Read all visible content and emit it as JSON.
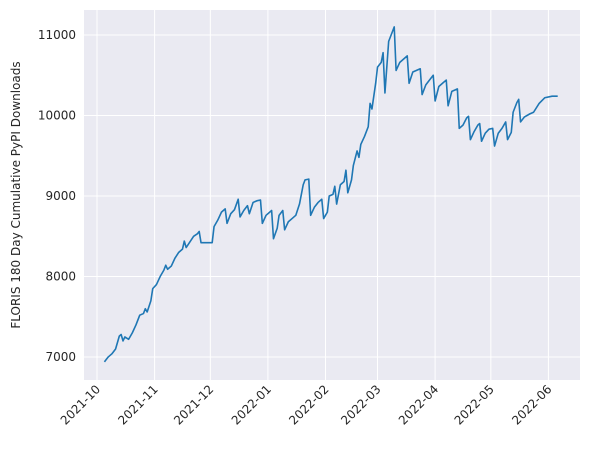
{
  "chart_data": {
    "type": "line",
    "ylabel": "FLORIS 180 Day Cumulative PyPI Downloads",
    "x": [
      18905,
      18907,
      18909,
      18911,
      18913,
      18914,
      18915,
      18916,
      18918,
      18920,
      18922,
      18924,
      18926,
      18927,
      18928,
      18930,
      18931,
      18933,
      18935,
      18937,
      18938,
      18939,
      18941,
      18943,
      18945,
      18947,
      18948,
      18949,
      18951,
      18953,
      18955,
      18956,
      18957,
      18961,
      18963,
      18964,
      18966,
      18968,
      18970,
      18971,
      18973,
      18975,
      18977,
      18978,
      18980,
      18982,
      18983,
      18985,
      18987,
      18989,
      18990,
      18992,
      18994,
      18995,
      18996,
      18998,
      18999,
      19001,
      19002,
      19004,
      19006,
      19008,
      19010,
      19012,
      19013,
      19015,
      19016,
      19018,
      19020,
      19022,
      19023,
      19025,
      19026,
      19028,
      19029,
      19030,
      19032,
      19034,
      19035,
      19036,
      19038,
      19039,
      19041,
      19042,
      19043,
      19045,
      19047,
      19048,
      19049,
      19051,
      19052,
      19054,
      19055,
      19056,
      19057,
      19058,
      19060,
      19061,
      19062,
      19064,
      19066,
      19068,
      19069,
      19071,
      19073,
      19075,
      19076,
      19078,
      19080,
      19082,
      19083,
      19085,
      19087,
      19089,
      19090,
      19092,
      19094,
      19095,
      19096,
      19098,
      19100,
      19101,
      19102,
      19104,
      19106,
      19107,
      19108,
      19110,
      19112,
      19114,
      19115,
      19117,
      19119,
      19121,
      19122,
      19124,
      19125,
      19127,
      19128,
      19129,
      19131,
      19134,
      19136,
      19139,
      19142,
      19146,
      19149
    ],
    "series": [
      {
        "name": "downloads",
        "color": "#1f77b4",
        "values": [
          6940,
          7000,
          7040,
          7100,
          7260,
          7280,
          7200,
          7250,
          7220,
          7300,
          7400,
          7520,
          7540,
          7600,
          7560,
          7700,
          7850,
          7900,
          8000,
          8080,
          8140,
          8090,
          8130,
          8230,
          8300,
          8340,
          8440,
          8360,
          8430,
          8500,
          8530,
          8560,
          8420,
          8420,
          8420,
          8620,
          8700,
          8800,
          8840,
          8660,
          8780,
          8830,
          8960,
          8740,
          8820,
          8880,
          8780,
          8920,
          8940,
          8950,
          8660,
          8760,
          8800,
          8820,
          8470,
          8600,
          8760,
          8820,
          8580,
          8680,
          8720,
          8760,
          8900,
          9140,
          9200,
          9210,
          8760,
          8860,
          8920,
          8960,
          8720,
          8800,
          9000,
          9020,
          9120,
          8900,
          9140,
          9180,
          9320,
          9040,
          9200,
          9380,
          9560,
          9480,
          9640,
          9740,
          9860,
          10150,
          10080,
          10400,
          10600,
          10660,
          10780,
          10280,
          10600,
          10920,
          11040,
          11100,
          10560,
          10660,
          10700,
          10740,
          10400,
          10540,
          10560,
          10580,
          10260,
          10380,
          10440,
          10500,
          10180,
          10360,
          10400,
          10440,
          10120,
          10300,
          10320,
          10330,
          9840,
          9880,
          9970,
          9990,
          9700,
          9800,
          9880,
          9900,
          9680,
          9780,
          9830,
          9840,
          9620,
          9780,
          9840,
          9920,
          9700,
          9790,
          10040,
          10160,
          10200,
          9920,
          9980,
          10020,
          10040,
          10150,
          10220,
          10240,
          10240
        ]
      }
    ],
    "xlim": [
      18894,
      19161
    ],
    "xticks": [
      {
        "value": 18901,
        "label": "2021-10"
      },
      {
        "value": 18932,
        "label": "2021-11"
      },
      {
        "value": 18962,
        "label": "2021-12"
      },
      {
        "value": 18993,
        "label": "2022-01"
      },
      {
        "value": 19024,
        "label": "2022-02"
      },
      {
        "value": 19052,
        "label": "2022-03"
      },
      {
        "value": 19083,
        "label": "2022-04"
      },
      {
        "value": 19113,
        "label": "2022-05"
      },
      {
        "value": 19144,
        "label": "2022-06"
      }
    ],
    "ylim": [
      6715,
      11310
    ],
    "yticks": [
      7000,
      8000,
      9000,
      10000,
      11000
    ],
    "grid": true
  }
}
